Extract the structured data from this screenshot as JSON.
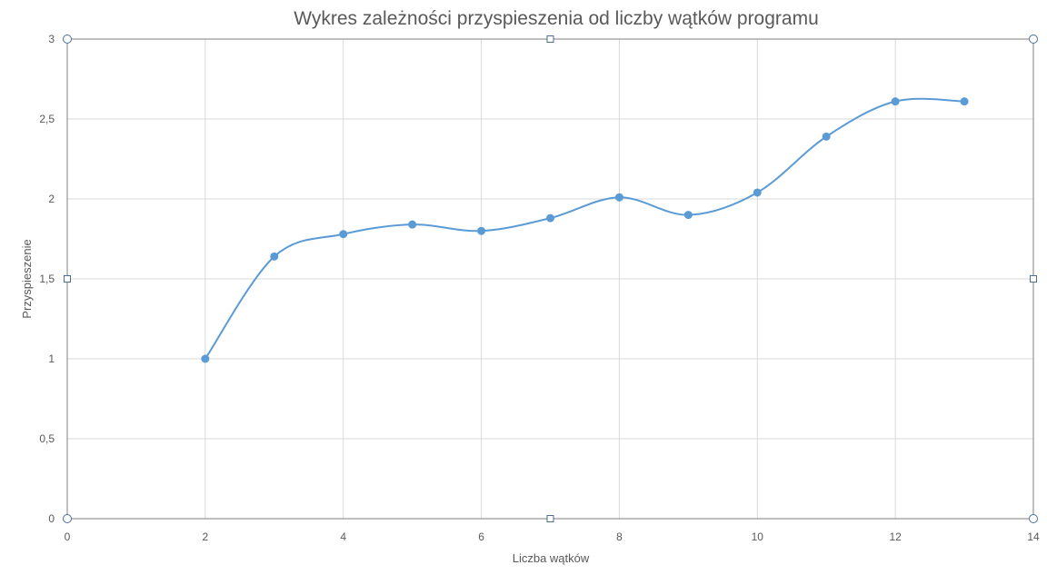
{
  "chart_data": {
    "type": "scatter",
    "title": "Wykres zależności przyspieszenia od liczby wątków programu",
    "xlabel": "Liczba wątków",
    "ylabel": "Przyspieszenie",
    "xlim": [
      0,
      14
    ],
    "ylim": [
      0,
      3
    ],
    "x_ticks": [
      0,
      2,
      4,
      6,
      8,
      10,
      12,
      14
    ],
    "y_ticks": [
      0,
      0.5,
      1,
      1.5,
      2,
      2.5,
      3
    ],
    "x_tick_labels": [
      "0",
      "2",
      "4",
      "6",
      "8",
      "10",
      "12",
      "14"
    ],
    "y_tick_labels": [
      "0",
      "0,5",
      "1",
      "1,5",
      "2",
      "2,5",
      "3"
    ],
    "grid": true,
    "smooth_lines": true,
    "markers": true,
    "series_color": "#5b9bd5",
    "series": [
      {
        "x": [
          2,
          3,
          4,
          5,
          6,
          7,
          8,
          9,
          10,
          11,
          12,
          13
        ],
        "values": [
          1.0,
          1.64,
          1.78,
          1.84,
          1.8,
          1.88,
          2.01,
          1.9,
          2.04,
          2.39,
          2.61,
          2.61
        ]
      }
    ]
  }
}
